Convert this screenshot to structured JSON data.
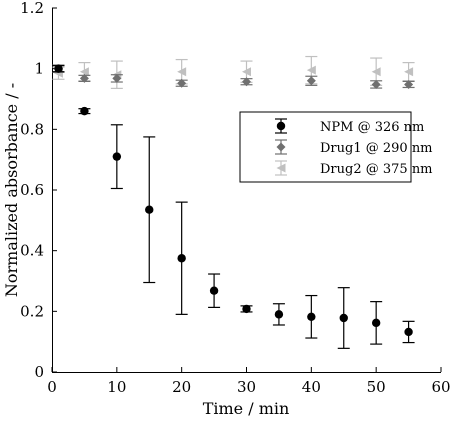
{
  "chart_data": {
    "type": "scatter",
    "xlabel": "Time / min",
    "ylabel": "Normalized absorbance / -",
    "xlim": [
      0,
      60
    ],
    "ylim": [
      0,
      1.2
    ],
    "xticks": [
      "0",
      "10",
      "20",
      "30",
      "40",
      "50",
      "60"
    ],
    "yticks": [
      "0",
      "0.2",
      "0.4",
      "0.6",
      "0.8",
      "1",
      "1.2"
    ],
    "xtick_values": [
      0,
      10,
      20,
      30,
      40,
      50,
      60
    ],
    "ytick_values": [
      0,
      0.2,
      0.4,
      0.6,
      0.8,
      1.0,
      1.2
    ],
    "grid": false,
    "legend_position": "right-center",
    "series": [
      {
        "name": "NPM @ 326 nm",
        "color": "#000000",
        "marker": "circle",
        "x": [
          1,
          5,
          10,
          15,
          20,
          25,
          30,
          35,
          40,
          45,
          50,
          55
        ],
        "y": [
          1.0,
          0.86,
          0.71,
          0.535,
          0.375,
          0.268,
          0.208,
          0.19,
          0.182,
          0.178,
          0.162,
          0.132
        ],
        "err": [
          0.01,
          0.008,
          0.105,
          0.24,
          0.185,
          0.055,
          0.01,
          0.035,
          0.07,
          0.1,
          0.07,
          0.035
        ]
      },
      {
        "name": "Drug1 @ 290 nm",
        "color": "#707070",
        "marker": "diamond",
        "x": [
          1,
          5,
          10,
          20,
          30,
          40,
          50,
          55
        ],
        "y": [
          1.0,
          0.968,
          0.968,
          0.952,
          0.957,
          0.96,
          0.948,
          0.948
        ],
        "err": [
          0.012,
          0.01,
          0.012,
          0.01,
          0.01,
          0.015,
          0.012,
          0.01
        ]
      },
      {
        "name": "Drug2 @ 375 nm",
        "color": "#c0c0c0",
        "marker": "triangle-left",
        "x": [
          1,
          5,
          10,
          20,
          30,
          40,
          50,
          55
        ],
        "y": [
          0.985,
          0.99,
          0.98,
          0.99,
          0.99,
          0.995,
          0.99,
          0.99
        ],
        "err": [
          0.02,
          0.03,
          0.045,
          0.04,
          0.035,
          0.045,
          0.045,
          0.03
        ]
      }
    ]
  }
}
